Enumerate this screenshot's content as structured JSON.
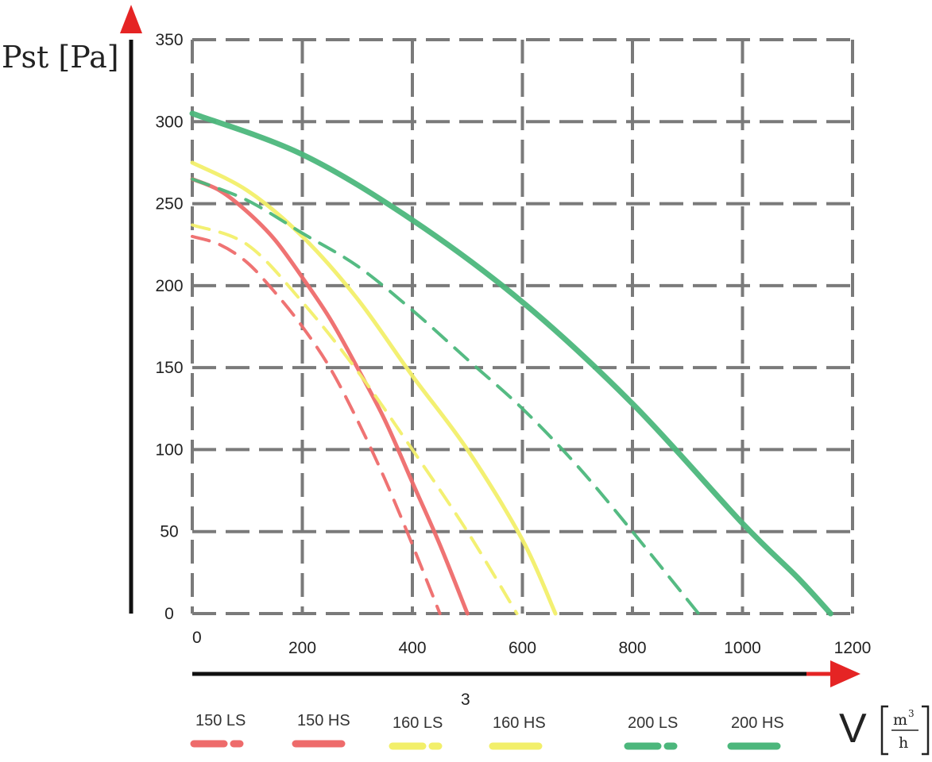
{
  "chart_data": {
    "type": "line",
    "title": "",
    "ylabel": "Pst [Pa]",
    "xlabel": "V",
    "xlabel_unit_numerator": "m",
    "xlabel_unit_superscript": "3",
    "xlabel_unit_denominator": "h",
    "stray_label": "3",
    "xlim": [
      0,
      1200
    ],
    "ylim": [
      0,
      350
    ],
    "x_ticks": [
      "0",
      "200",
      "400",
      "600",
      "800",
      "1000",
      "1200"
    ],
    "y_ticks": [
      "0",
      "50",
      "100",
      "150",
      "200",
      "250",
      "300",
      "350"
    ],
    "grid": true,
    "legend_position": "bottom",
    "series": [
      {
        "name": "150 LS",
        "color": "#ee6b6b",
        "style": "dashed",
        "x": [
          0,
          50,
          100,
          150,
          200,
          250,
          300,
          350,
          400,
          450
        ],
        "y": [
          230,
          225,
          214,
          196,
          175,
          150,
          118,
          82,
          42,
          0
        ]
      },
      {
        "name": "150 HS",
        "color": "#ee6b6b",
        "style": "solid",
        "x": [
          0,
          50,
          100,
          150,
          200,
          250,
          300,
          350,
          400,
          450,
          500
        ],
        "y": [
          265,
          258,
          245,
          228,
          205,
          180,
          150,
          118,
          80,
          42,
          0
        ]
      },
      {
        "name": "160 LS",
        "color": "#f2ef6a",
        "style": "dashed",
        "x": [
          0,
          100,
          200,
          300,
          400,
          500,
          590
        ],
        "y": [
          237,
          225,
          190,
          148,
          100,
          50,
          0
        ]
      },
      {
        "name": "160 HS",
        "color": "#f2ef6a",
        "style": "solid",
        "x": [
          0,
          100,
          200,
          300,
          400,
          500,
          600,
          660
        ],
        "y": [
          275,
          258,
          230,
          192,
          145,
          100,
          45,
          0
        ]
      },
      {
        "name": "200 LS",
        "color": "#4cb77c",
        "style": "dashed",
        "x": [
          0,
          100,
          200,
          300,
          400,
          500,
          600,
          700,
          800,
          920
        ],
        "y": [
          265,
          252,
          232,
          212,
          185,
          155,
          125,
          90,
          50,
          0
        ]
      },
      {
        "name": "200 HS",
        "color": "#4cb77c",
        "style": "solid",
        "x": [
          0,
          200,
          400,
          600,
          800,
          1000,
          1100,
          1160
        ],
        "y": [
          305,
          280,
          240,
          190,
          128,
          55,
          22,
          0
        ]
      }
    ]
  }
}
